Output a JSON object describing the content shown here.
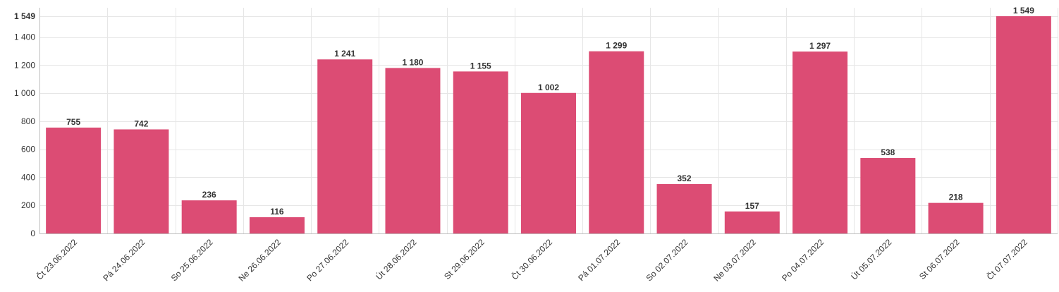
{
  "colors": {
    "bar": "#dc4c74",
    "grid": "#e6e6e6",
    "axis": "#bdbdbd",
    "text": "#333333"
  },
  "chart_data": {
    "type": "bar",
    "categories": [
      "Čt 23.06.2022",
      "Pá 24.06.2022",
      "So 25.06.2022",
      "Ne 26.06.2022",
      "Po 27.06.2022",
      "Út 28.06.2022",
      "St 29.06.2022",
      "Čt 30.06.2022",
      "Pá 01.07.2022",
      "So 02.07.2022",
      "Ne 03.07.2022",
      "Po 04.07.2022",
      "Út 05.07.2022",
      "St 06.07.2022",
      "Čt 07.07.2022"
    ],
    "values": [
      755,
      742,
      236,
      116,
      1241,
      1180,
      1155,
      1002,
      1299,
      352,
      157,
      1297,
      538,
      218,
      1549
    ],
    "value_labels": [
      "755",
      "742",
      "236",
      "116",
      "1 241",
      "1 180",
      "1 155",
      "1 002",
      "1 299",
      "352",
      "157",
      "1 297",
      "538",
      "218",
      "1 549"
    ],
    "y_ticks": [
      0,
      200,
      400,
      600,
      800,
      1000,
      1200,
      1400,
      1549
    ],
    "y_tick_labels": [
      "0",
      "200",
      "400",
      "600",
      "800",
      "1 000",
      "1 200",
      "1 400",
      "1 549"
    ],
    "ylim": [
      0,
      1549
    ],
    "grid": true,
    "title": "",
    "xlabel": "",
    "ylabel": ""
  }
}
